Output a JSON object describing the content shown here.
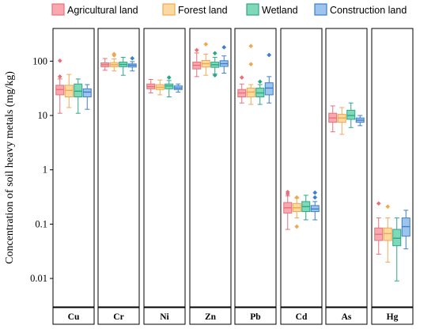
{
  "chart_data": {
    "type": "box",
    "ylabel": "Concentration of soil heavy metals (mg/kg)",
    "yscale": "log",
    "ylim": [
      0.003,
      400
    ],
    "yticks": [
      {
        "value": 0.01,
        "label": "0.01"
      },
      {
        "value": 0.1,
        "label": "0.1"
      },
      {
        "value": 1,
        "label": "1"
      },
      {
        "value": 10,
        "label": "10"
      },
      {
        "value": 100,
        "label": "100"
      }
    ],
    "legend_position": "top",
    "series": [
      {
        "name": "Agricultural land",
        "fill": "#f8a8ae",
        "stroke": "#e8707a"
      },
      {
        "name": "Forest land",
        "fill": "#fcd9a0",
        "stroke": "#f0a850"
      },
      {
        "name": "Wetland",
        "fill": "#7fd9b8",
        "stroke": "#2aa882"
      },
      {
        "name": "Construction land",
        "fill": "#9cc4ec",
        "stroke": "#3d7fcc"
      }
    ],
    "panels": [
      {
        "label": "Cu",
        "boxes": [
          {
            "min": 11,
            "q1": 24,
            "median": 30,
            "q3": 36,
            "max": 47,
            "outliers": [
              52,
              102
            ]
          },
          {
            "min": 14,
            "q1": 22,
            "median": 29,
            "q3": 36,
            "max": 57,
            "outliers": []
          },
          {
            "min": 11,
            "q1": 22,
            "median": 28,
            "q3": 38,
            "max": 47,
            "outliers": []
          },
          {
            "min": 13,
            "q1": 22,
            "median": 27,
            "q3": 31,
            "max": 37,
            "outliers": []
          }
        ]
      },
      {
        "label": "Cr",
        "boxes": [
          {
            "min": 68,
            "q1": 79,
            "median": 86,
            "q3": 93,
            "max": 112,
            "outliers": []
          },
          {
            "min": 66,
            "q1": 79,
            "median": 86,
            "q3": 94,
            "max": 110,
            "outliers": [
              128,
              135
            ]
          },
          {
            "min": 55,
            "q1": 79,
            "median": 87,
            "q3": 96,
            "max": 118,
            "outliers": []
          },
          {
            "min": 66,
            "q1": 78,
            "median": 84,
            "q3": 89,
            "max": 98,
            "outliers": [
              113
            ]
          }
        ]
      },
      {
        "label": "Ni",
        "boxes": [
          {
            "min": 26,
            "q1": 31,
            "median": 34,
            "q3": 38,
            "max": 46,
            "outliers": []
          },
          {
            "min": 24,
            "q1": 30,
            "median": 33,
            "q3": 37,
            "max": 45,
            "outliers": []
          },
          {
            "min": 22,
            "q1": 31,
            "median": 35,
            "q3": 38,
            "max": 44,
            "outliers": [
              50
            ]
          },
          {
            "min": 27,
            "q1": 30,
            "median": 32,
            "q3": 35,
            "max": 38,
            "outliers": []
          }
        ]
      },
      {
        "label": "Zn",
        "boxes": [
          {
            "min": 52,
            "q1": 72,
            "median": 84,
            "q3": 96,
            "max": 142,
            "outliers": [
              160
            ]
          },
          {
            "min": 55,
            "q1": 78,
            "median": 90,
            "q3": 103,
            "max": 135,
            "outliers": [
              205
            ]
          },
          {
            "min": 58,
            "q1": 77,
            "median": 86,
            "q3": 96,
            "max": 118,
            "outliers": [
              55,
              140
            ]
          },
          {
            "min": 60,
            "q1": 80,
            "median": 90,
            "q3": 102,
            "max": 125,
            "outliers": [
              180
            ]
          }
        ]
      },
      {
        "label": "Pb",
        "boxes": [
          {
            "min": 17,
            "q1": 22,
            "median": 26,
            "q3": 30,
            "max": 38,
            "outliers": [
              50
            ]
          },
          {
            "min": 16,
            "q1": 22,
            "median": 27,
            "q3": 32,
            "max": 37,
            "outliers": [
              88,
              190
            ]
          },
          {
            "min": 16,
            "q1": 22,
            "median": 26,
            "q3": 32,
            "max": 37,
            "outliers": [
              42
            ]
          },
          {
            "min": 17,
            "q1": 24,
            "median": 32,
            "q3": 40,
            "max": 52,
            "outliers": [
              130
            ]
          }
        ]
      },
      {
        "label": "Cd",
        "boxes": [
          {
            "min": 0.08,
            "q1": 0.16,
            "median": 0.2,
            "q3": 0.25,
            "max": 0.33,
            "outliers": [
              0.36,
              0.39
            ]
          },
          {
            "min": 0.13,
            "q1": 0.17,
            "median": 0.2,
            "q3": 0.24,
            "max": 0.3,
            "outliers": [
              0.09,
              0.31
            ]
          },
          {
            "min": 0.12,
            "q1": 0.17,
            "median": 0.21,
            "q3": 0.26,
            "max": 0.34,
            "outliers": []
          },
          {
            "min": 0.12,
            "q1": 0.17,
            "median": 0.19,
            "q3": 0.22,
            "max": 0.26,
            "outliers": [
              0.31,
              0.38
            ]
          }
        ]
      },
      {
        "label": "As",
        "boxes": [
          {
            "min": 5,
            "q1": 7.5,
            "median": 9,
            "q3": 11,
            "max": 15,
            "outliers": []
          },
          {
            "min": 4.5,
            "q1": 7.5,
            "median": 9,
            "q3": 10.5,
            "max": 14,
            "outliers": []
          },
          {
            "min": 6,
            "q1": 8.5,
            "median": 10,
            "q3": 12.5,
            "max": 17,
            "outliers": []
          },
          {
            "min": 6.5,
            "q1": 7.5,
            "median": 8.2,
            "q3": 9,
            "max": 10,
            "outliers": []
          }
        ]
      },
      {
        "label": "Hg",
        "boxes": [
          {
            "min": 0.028,
            "q1": 0.05,
            "median": 0.065,
            "q3": 0.085,
            "max": 0.13,
            "outliers": [
              0.24
            ]
          },
          {
            "min": 0.02,
            "q1": 0.05,
            "median": 0.067,
            "q3": 0.085,
            "max": 0.13,
            "outliers": [
              0.21
            ]
          },
          {
            "min": 0.009,
            "q1": 0.04,
            "median": 0.055,
            "q3": 0.08,
            "max": 0.13,
            "outliers": []
          },
          {
            "min": 0.035,
            "q1": 0.06,
            "median": 0.09,
            "q3": 0.13,
            "max": 0.18,
            "outliers": []
          }
        ]
      }
    ]
  }
}
